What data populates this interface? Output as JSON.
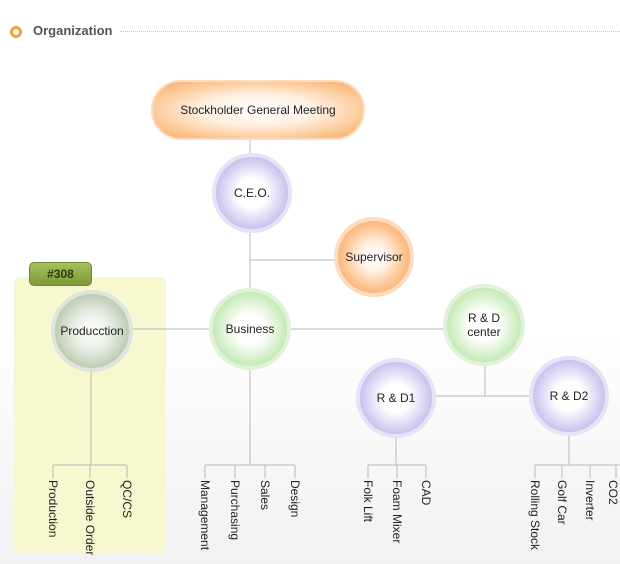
{
  "header": {
    "title": "Organization",
    "icon": "bullet-circle-icon"
  },
  "colors": {
    "accent_orange": "#f3a23a",
    "node_purple": "#a99bde",
    "node_green": "#a2d98f",
    "node_orange": "#f79d50",
    "highlight_fill": "#f7f8d0",
    "tag_green": "#8fad47",
    "line_gray": "#b9b9b9"
  },
  "tag": "#308",
  "nodes": {
    "stockholder": "Stockholder General Meeting",
    "ceo": "C.E.O.",
    "supervisor": "Supervisor",
    "production": "Producction",
    "business": "Business",
    "rd_center": [
      "R & D",
      "center"
    ],
    "rd1": "R & D1",
    "rd2": "R & D2"
  },
  "leaves": {
    "production": [
      "Production",
      "Outside Order",
      "QC/CS"
    ],
    "business": [
      "Management",
      "Purchasing",
      "Sales",
      "Design"
    ],
    "rd1": [
      "Folk Lift",
      "Foam  Mixer",
      "CAD"
    ],
    "rd2": [
      "Rolling Stock",
      "Golf  Car",
      "Inverter",
      "CO2"
    ]
  }
}
